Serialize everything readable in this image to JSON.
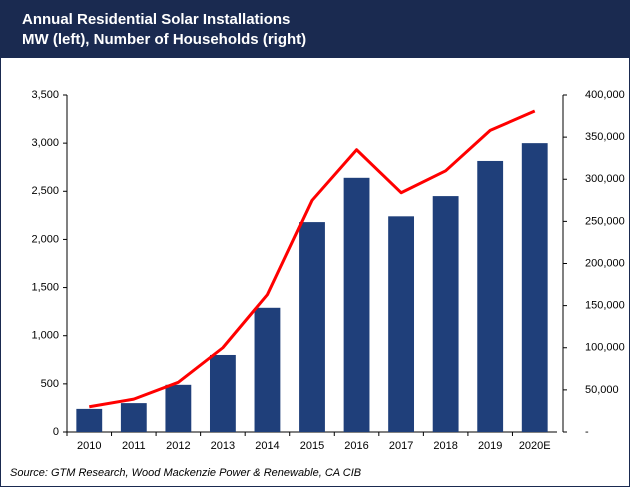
{
  "chart_data": {
    "type": "bar_line",
    "title": "Annual Residential Solar Installations",
    "subtitle": "MW (left), Number of Households (right)",
    "source": "Source: GTM Research, Wood Mackenzie Power & Renewable, CA CIB",
    "categories": [
      "2010",
      "2011",
      "2012",
      "2013",
      "2014",
      "2015",
      "2016",
      "2017",
      "2018",
      "2019",
      "2020E"
    ],
    "series": [
      {
        "name": "MW",
        "color": "#1f3f7a",
        "type": "bar",
        "values": [
          240,
          300,
          490,
          800,
          1290,
          2180,
          2640,
          2240,
          2450,
          2815,
          3000
        ]
      },
      {
        "name": "Number of Households",
        "color": "#ff0000",
        "type": "line",
        "axis": "y2",
        "values": [
          30000,
          39000,
          59000,
          100000,
          163000,
          275000,
          335000,
          284000,
          310000,
          358000,
          381000
        ]
      }
    ],
    "ylim": [
      0,
      3500
    ],
    "yticks": [
      0,
      {
        "value": 500,
        "label": "500"
      },
      {
        "value": 1000,
        "label": "1,000"
      },
      {
        "value": 1500,
        "label": "1,500"
      },
      {
        "value": 2000,
        "label": "2,000"
      },
      {
        "value": 2500,
        "label": "2,500"
      },
      {
        "value": 3000,
        "label": "3,000"
      },
      {
        "value": 3500,
        "label": "3,500"
      }
    ],
    "y2lim": [
      0,
      400000
    ],
    "y2ticks": [
      {
        "value": 0,
        "label": "-"
      },
      {
        "value": 50000,
        "label": "50,000"
      },
      {
        "value": 100000,
        "label": "100,000"
      },
      {
        "value": 150000,
        "label": "150,000"
      },
      {
        "value": 200000,
        "label": "200,000"
      },
      {
        "value": 250000,
        "label": "250,000"
      },
      {
        "value": 300000,
        "label": "300,000"
      },
      {
        "value": 350000,
        "label": "350,000"
      },
      {
        "value": 400000,
        "label": "400,000"
      }
    ]
  }
}
